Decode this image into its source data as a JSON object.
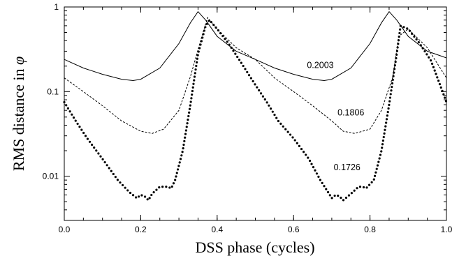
{
  "chart_data": {
    "type": "line",
    "title": "",
    "xlabel": "DSS phase (cycles)",
    "ylabel_text": "RMS distance in ",
    "ylabel_symbol": "φ",
    "xlim": [
      0,
      1
    ],
    "ylim": [
      0.003,
      1
    ],
    "yscale": "log",
    "grid": false,
    "legend": "none",
    "x_ticks": [
      0,
      0.2,
      0.4,
      0.6,
      0.8,
      1.0
    ],
    "x_tick_labels": [
      "0.0",
      "0.2",
      "0.4",
      "0.6",
      "0.8",
      "1.0"
    ],
    "y_ticks": [
      0.01,
      0.1,
      1
    ],
    "y_tick_labels": [
      "0.01",
      "0.1",
      "1"
    ],
    "series": [
      {
        "label": "0.2003",
        "label_at": [
          0.67,
          0.19
        ],
        "style": "solid",
        "x": [
          0.0,
          0.05,
          0.1,
          0.15,
          0.18,
          0.2,
          0.25,
          0.3,
          0.33,
          0.35,
          0.37,
          0.4,
          0.45,
          0.5,
          0.55,
          0.6,
          0.65,
          0.68,
          0.7,
          0.75,
          0.8,
          0.83,
          0.85,
          0.87,
          0.9,
          0.95,
          1.0
        ],
        "y": [
          0.24,
          0.19,
          0.16,
          0.14,
          0.135,
          0.14,
          0.19,
          0.37,
          0.65,
          0.88,
          0.7,
          0.45,
          0.3,
          0.24,
          0.19,
          0.16,
          0.14,
          0.135,
          0.14,
          0.19,
          0.37,
          0.65,
          0.88,
          0.7,
          0.45,
          0.3,
          0.25
        ]
      },
      {
        "label": "0.1806",
        "label_at": [
          0.75,
          0.052
        ],
        "style": "dashed",
        "x": [
          0.0,
          0.05,
          0.1,
          0.15,
          0.2,
          0.23,
          0.26,
          0.3,
          0.33,
          0.36,
          0.375,
          0.4,
          0.45,
          0.5,
          0.55,
          0.6,
          0.65,
          0.7,
          0.73,
          0.76,
          0.8,
          0.83,
          0.86,
          0.875,
          0.9,
          0.95,
          1.0
        ],
        "y": [
          0.145,
          0.1,
          0.068,
          0.045,
          0.034,
          0.032,
          0.036,
          0.06,
          0.15,
          0.45,
          0.75,
          0.55,
          0.33,
          0.24,
          0.145,
          0.1,
          0.068,
          0.045,
          0.034,
          0.032,
          0.036,
          0.06,
          0.15,
          0.45,
          0.55,
          0.33,
          0.145
        ]
      },
      {
        "label": "0.1726",
        "label_at": [
          0.74,
          0.0118
        ],
        "style": "dotted",
        "x": [
          0.0,
          0.03,
          0.06,
          0.1,
          0.14,
          0.17,
          0.19,
          0.2,
          0.21,
          0.22,
          0.23,
          0.25,
          0.27,
          0.28,
          0.29,
          0.31,
          0.33,
          0.35,
          0.37,
          0.38,
          0.4,
          0.43,
          0.46,
          0.5,
          0.53,
          0.56,
          0.6,
          0.64,
          0.67,
          0.69,
          0.7,
          0.71,
          0.72,
          0.73,
          0.75,
          0.77,
          0.78,
          0.79,
          0.81,
          0.83,
          0.85,
          0.87,
          0.88,
          0.9,
          0.93,
          0.96,
          1.0
        ],
        "y": [
          0.075,
          0.045,
          0.028,
          0.016,
          0.009,
          0.0065,
          0.0055,
          0.006,
          0.0058,
          0.0052,
          0.0062,
          0.0075,
          0.0075,
          0.0072,
          0.009,
          0.02,
          0.07,
          0.28,
          0.6,
          0.7,
          0.55,
          0.37,
          0.23,
          0.12,
          0.075,
          0.045,
          0.028,
          0.016,
          0.009,
          0.0065,
          0.0055,
          0.006,
          0.0058,
          0.0052,
          0.0062,
          0.0075,
          0.0075,
          0.0072,
          0.009,
          0.02,
          0.07,
          0.28,
          0.6,
          0.55,
          0.37,
          0.23,
          0.075
        ]
      }
    ]
  }
}
